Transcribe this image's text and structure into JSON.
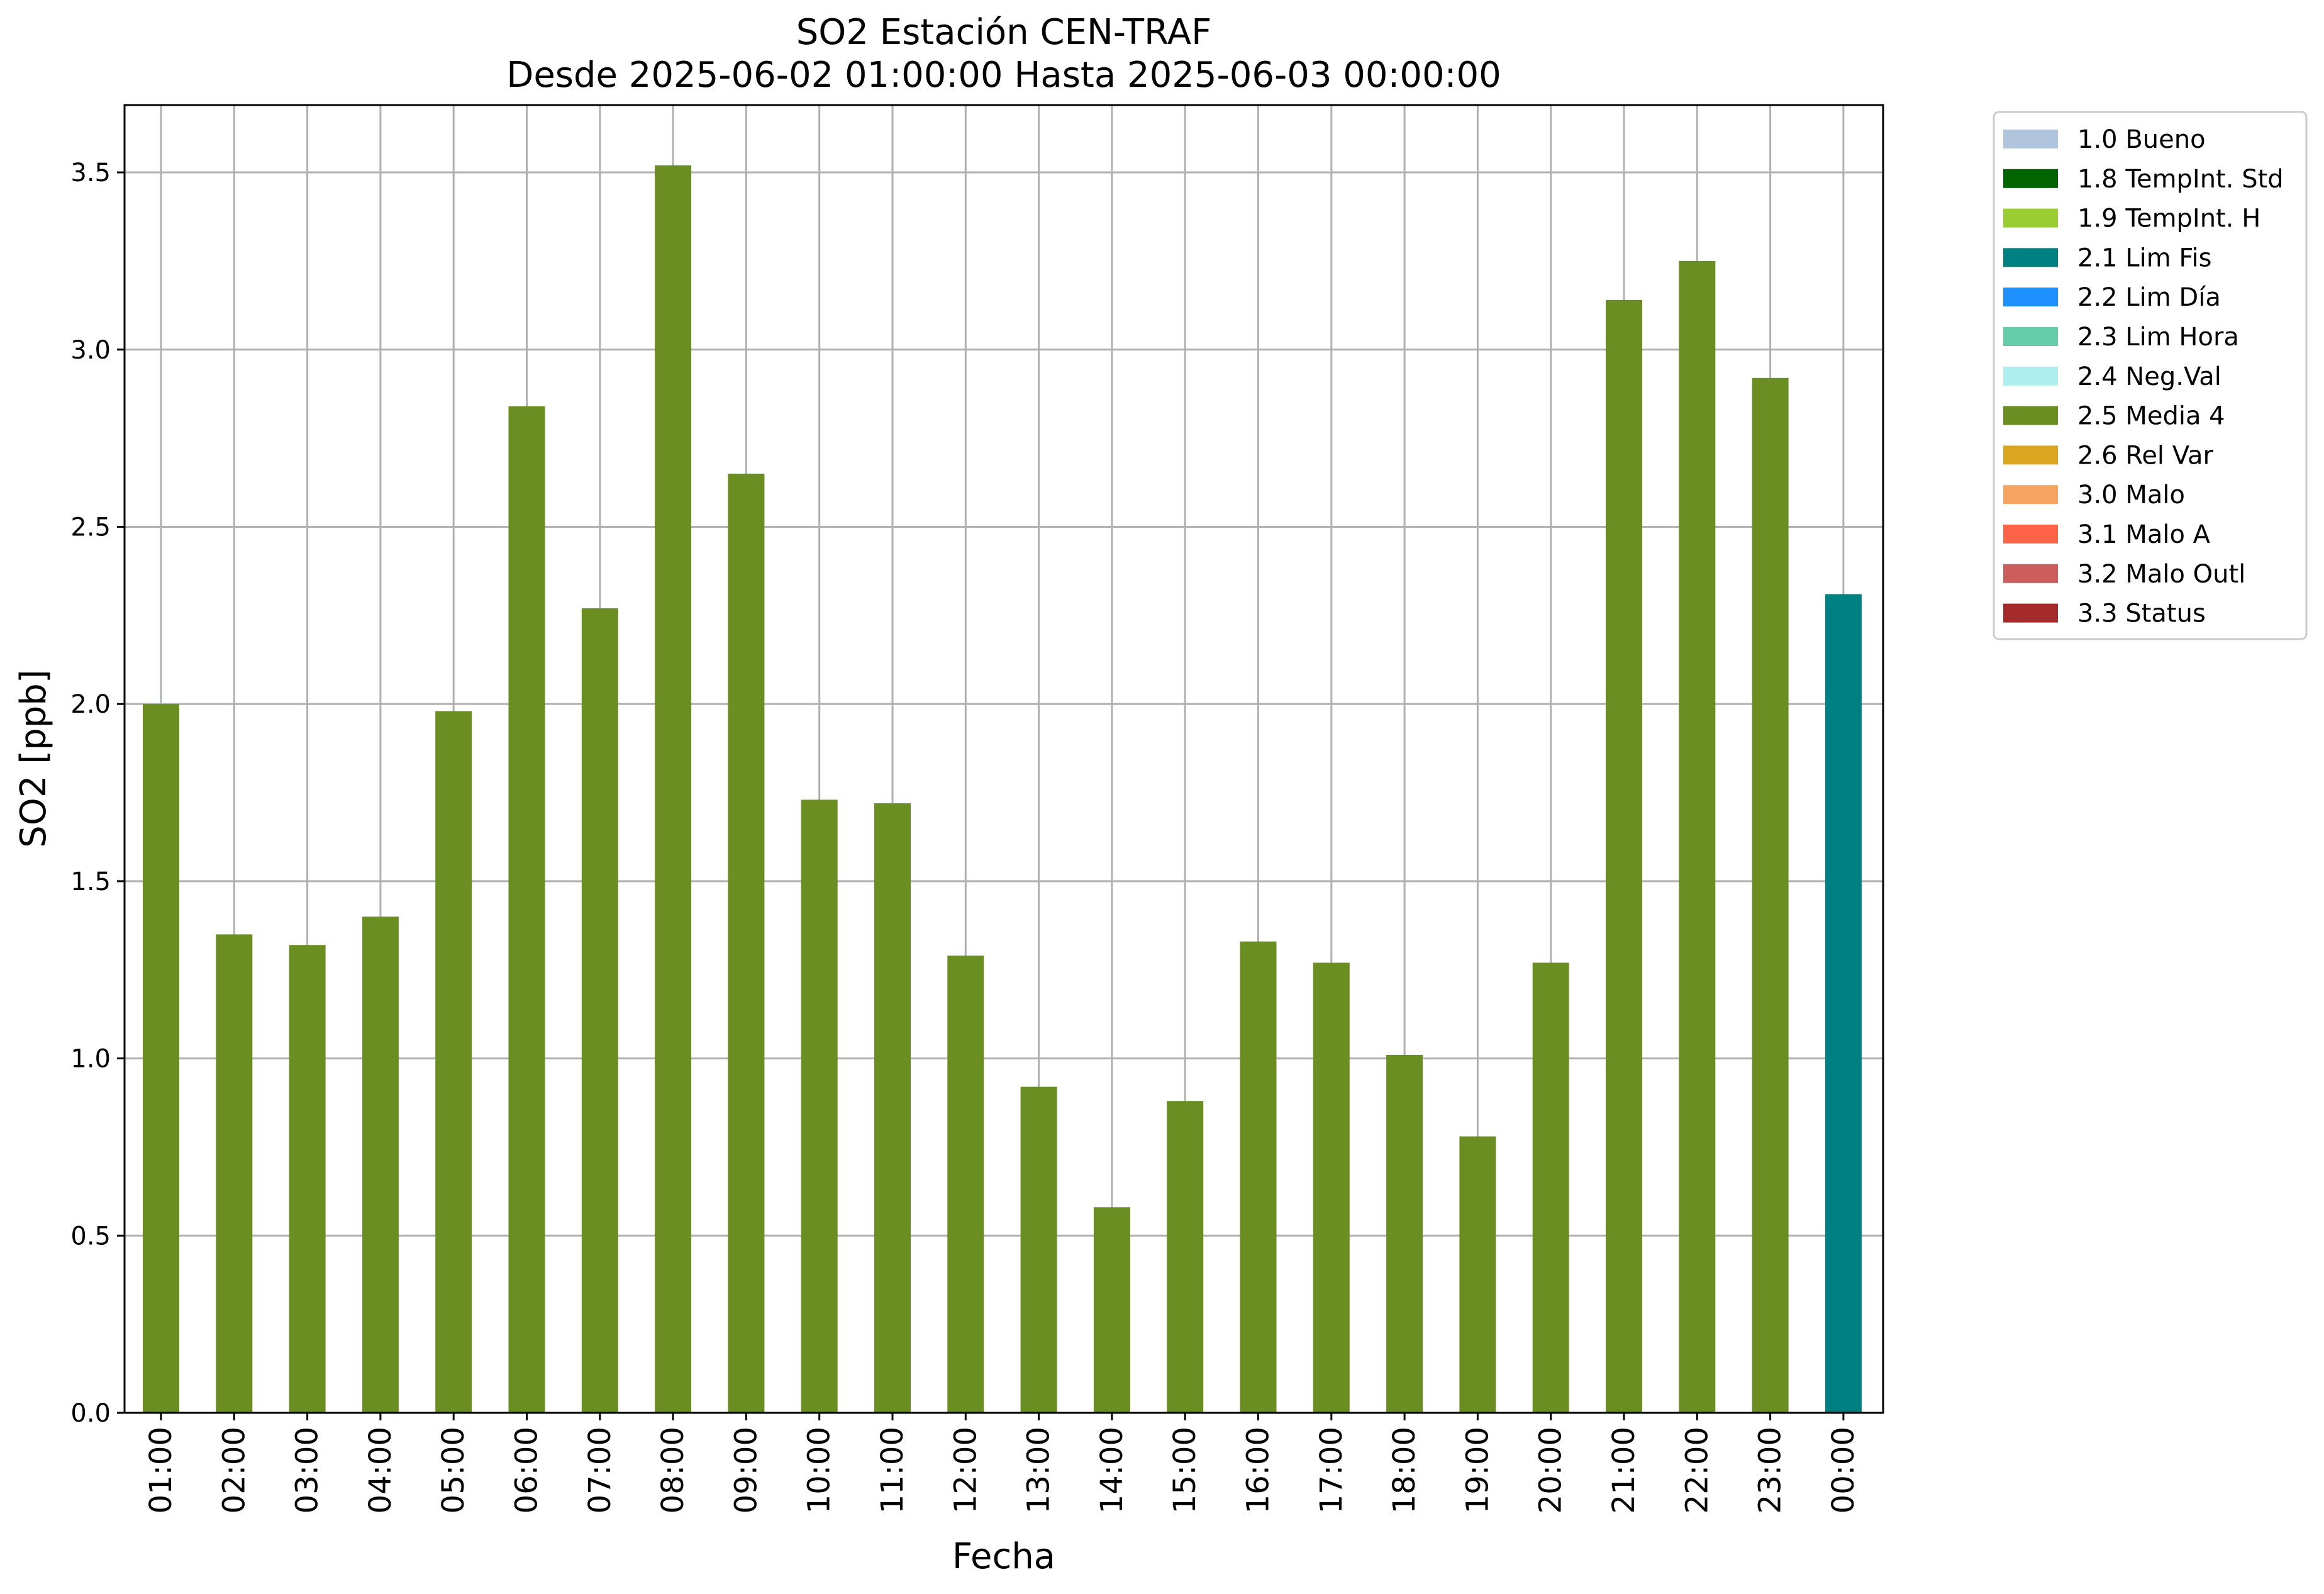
{
  "chart_data": {
    "type": "bar",
    "title": "SO2 Estación CEN-TRAF",
    "subtitle": "Desde 2025-06-02 01:00:00 Hasta 2025-06-03 00:00:00",
    "xlabel": "Fecha",
    "ylabel": "SO2 [ppb]",
    "ylim": [
      0,
      3.69
    ],
    "yticks": [
      "0.0",
      "0.5",
      "1.0",
      "1.5",
      "2.0",
      "2.5",
      "3.0",
      "3.5"
    ],
    "grid": true,
    "legend_position": "outside-right",
    "categories": [
      "01:00",
      "02:00",
      "03:00",
      "04:00",
      "05:00",
      "06:00",
      "07:00",
      "08:00",
      "09:00",
      "10:00",
      "11:00",
      "12:00",
      "13:00",
      "14:00",
      "15:00",
      "16:00",
      "17:00",
      "18:00",
      "19:00",
      "20:00",
      "21:00",
      "22:00",
      "23:00",
      "00:00"
    ],
    "values": [
      2.0,
      1.35,
      1.32,
      1.4,
      1.98,
      2.84,
      2.27,
      3.52,
      2.65,
      1.73,
      1.72,
      1.29,
      0.92,
      0.58,
      0.88,
      1.33,
      1.27,
      1.01,
      0.78,
      1.27,
      3.14,
      3.25,
      2.92,
      2.31
    ],
    "bar_flags": [
      "2.5 Media 4",
      "2.5 Media 4",
      "2.5 Media 4",
      "2.5 Media 4",
      "2.5 Media 4",
      "2.5 Media 4",
      "2.5 Media 4",
      "2.5 Media 4",
      "2.5 Media 4",
      "2.5 Media 4",
      "2.5 Media 4",
      "2.5 Media 4",
      "2.5 Media 4",
      "2.5 Media 4",
      "2.5 Media 4",
      "2.5 Media 4",
      "2.5 Media 4",
      "2.5 Media 4",
      "2.5 Media 4",
      "2.5 Media 4",
      "2.5 Media 4",
      "2.5 Media 4",
      "2.5 Media 4",
      "2.1 Lim Fis"
    ],
    "legend": [
      {
        "label": "1.0 Bueno",
        "color": "#b0c4de"
      },
      {
        "label": "1.8 TempInt. Std",
        "color": "#006400"
      },
      {
        "label": "1.9 TempInt. H",
        "color": "#9acd32"
      },
      {
        "label": "2.1 Lim Fis",
        "color": "#008080"
      },
      {
        "label": "2.2 Lim Día",
        "color": "#1e90ff"
      },
      {
        "label": "2.3 Lim Hora",
        "color": "#66cdaa"
      },
      {
        "label": "2.4 Neg.Val",
        "color": "#afeeee"
      },
      {
        "label": "2.5 Media 4",
        "color": "#6b8e23"
      },
      {
        "label": "2.6 Rel Var",
        "color": "#daa520"
      },
      {
        "label": "3.0 Malo",
        "color": "#f4a460"
      },
      {
        "label": "3.1 Malo A",
        "color": "#ff6347"
      },
      {
        "label": "3.2 Malo Outl",
        "color": "#cd5c5c"
      },
      {
        "label": "3.3 Status",
        "color": "#a52a2a"
      }
    ]
  }
}
